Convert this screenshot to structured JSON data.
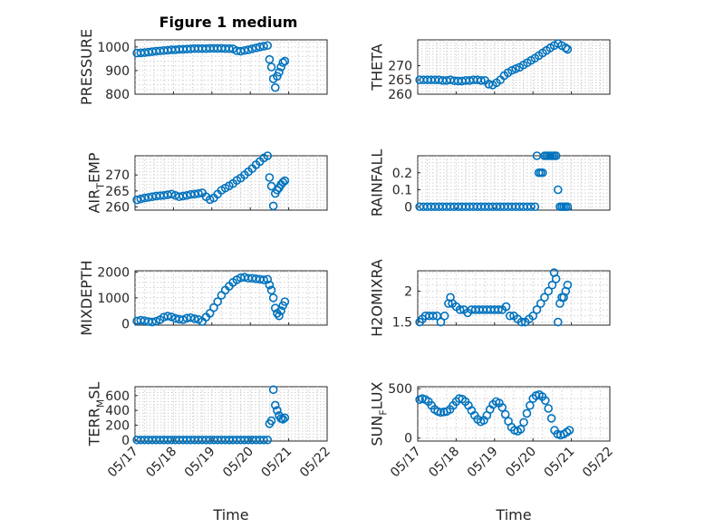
{
  "figure_title": "Figure 1 medium",
  "marker_color": "#0072BD",
  "chart_data": [
    {
      "type": "scatter",
      "ylabel": "PRESSURE",
      "ylim": [
        800,
        1030
      ],
      "yticks": [
        800,
        900,
        1000
      ],
      "yticklabels": [
        "800",
        "900",
        "1000"
      ],
      "grid": true,
      "x": [
        0.05,
        0.15,
        0.25,
        0.35,
        0.45,
        0.55,
        0.65,
        0.75,
        0.85,
        0.95,
        1.05,
        1.15,
        1.25,
        1.35,
        1.45,
        1.55,
        1.65,
        1.75,
        1.85,
        1.95,
        2.05,
        2.15,
        2.25,
        2.35,
        2.45,
        2.55,
        2.65,
        2.75,
        2.85,
        2.95,
        3.05,
        3.15,
        3.25,
        3.35,
        3.45,
        3.5,
        3.55,
        3.6,
        3.65,
        3.7,
        3.75,
        3.8,
        3.85,
        3.9
      ],
      "y": [
        974,
        975,
        976,
        978,
        980,
        982,
        983,
        985,
        986,
        988,
        988,
        990,
        990,
        991,
        992,
        993,
        993,
        993,
        993,
        994,
        994,
        994,
        994,
        993,
        993,
        992,
        984,
        982,
        985,
        988,
        992,
        996,
        1000,
        1003,
        1006,
        947,
        915,
        865,
        828,
        876,
        893,
        915,
        934,
        940
      ]
    },
    {
      "type": "scatter",
      "ylabel": "THETA",
      "ylim": [
        260,
        279
      ],
      "yticks": [
        260,
        265,
        270
      ],
      "yticklabels": [
        "260",
        "265",
        "270"
      ],
      "grid": true,
      "x": [
        0.05,
        0.15,
        0.25,
        0.35,
        0.45,
        0.55,
        0.65,
        0.75,
        0.85,
        0.95,
        1.05,
        1.15,
        1.25,
        1.35,
        1.45,
        1.55,
        1.65,
        1.75,
        1.85,
        1.95,
        2.05,
        2.15,
        2.25,
        2.35,
        2.45,
        2.55,
        2.65,
        2.75,
        2.85,
        2.95,
        3.05,
        3.15,
        3.25,
        3.35,
        3.45,
        3.55,
        3.65,
        3.75,
        3.85,
        3.9
      ],
      "y": [
        265,
        265,
        265,
        265,
        265,
        265,
        264.8,
        264.8,
        265,
        264.7,
        264.6,
        264.6,
        264.8,
        264.8,
        265,
        265,
        264.8,
        264.8,
        263.5,
        263.2,
        264,
        265,
        266.5,
        267.5,
        268.3,
        268.9,
        269.4,
        270.2,
        271,
        271.8,
        272.6,
        273.5,
        274.4,
        275.3,
        276.2,
        277,
        277.7,
        277,
        276.2,
        275.7
      ]
    },
    {
      "type": "scatter",
      "ylabel": "AIR_TEMP",
      "ylim": [
        259,
        276
      ],
      "yticks": [
        260,
        265,
        270
      ],
      "yticklabels": [
        "260",
        "265",
        "270"
      ],
      "grid": true,
      "x": [
        0.05,
        0.15,
        0.25,
        0.35,
        0.45,
        0.55,
        0.65,
        0.75,
        0.85,
        0.95,
        1.05,
        1.15,
        1.25,
        1.35,
        1.45,
        1.55,
        1.65,
        1.75,
        1.85,
        1.95,
        2.05,
        2.15,
        2.25,
        2.35,
        2.45,
        2.55,
        2.65,
        2.75,
        2.85,
        2.95,
        3.05,
        3.15,
        3.25,
        3.35,
        3.45,
        3.5,
        3.55,
        3.6,
        3.65,
        3.7,
        3.75,
        3.8,
        3.85,
        3.9
      ],
      "y": [
        262.2,
        262.5,
        262.8,
        263,
        263.2,
        263.4,
        263.5,
        263.6,
        263.8,
        264,
        263.6,
        263.2,
        263.4,
        263.6,
        263.9,
        264,
        264.2,
        264.4,
        263.2,
        262.3,
        262.8,
        264,
        265.2,
        265.9,
        266.6,
        267.3,
        268.3,
        269,
        270,
        271,
        272,
        273.2,
        274.2,
        275.3,
        276,
        269.2,
        266.5,
        260.3,
        264.2,
        265.3,
        266,
        267,
        267.7,
        268.2
      ]
    },
    {
      "type": "scatter",
      "ylabel": "RAINFALL",
      "ylim": [
        -0.02,
        0.3
      ],
      "yticks": [
        0,
        0.1,
        0.2
      ],
      "yticklabels": [
        "0",
        "0.1",
        "0.2"
      ],
      "grid": true,
      "x": [
        0.05,
        0.15,
        0.25,
        0.35,
        0.45,
        0.55,
        0.65,
        0.75,
        0.85,
        0.95,
        1.05,
        1.15,
        1.25,
        1.35,
        1.45,
        1.55,
        1.65,
        1.75,
        1.85,
        1.95,
        2.05,
        2.15,
        2.25,
        2.35,
        2.45,
        2.55,
        2.65,
        2.75,
        2.85,
        2.95,
        3.05,
        3.1,
        3.15,
        3.2,
        3.25,
        3.3,
        3.35,
        3.4,
        3.45,
        3.5,
        3.55,
        3.6,
        3.65,
        3.7,
        3.75,
        3.8,
        3.85,
        3.9
      ],
      "y": [
        0,
        0,
        0,
        0,
        0,
        0,
        0,
        0,
        0,
        0,
        0,
        0,
        0,
        0,
        0,
        0,
        0,
        0,
        0,
        0,
        0,
        0,
        0,
        0,
        0,
        0,
        0,
        0,
        0,
        0,
        0,
        0.3,
        0.2,
        0.2,
        0.2,
        0.3,
        0.3,
        0.3,
        0.3,
        0.3,
        0.3,
        0.3,
        0.1,
        0,
        0,
        0,
        0,
        0
      ]
    },
    {
      "type": "scatter",
      "ylabel": "MIXDEPTH",
      "ylim": [
        -60,
        2050
      ],
      "yticks": [
        0,
        1000,
        2000
      ],
      "yticklabels": [
        "0",
        "1000",
        "2000"
      ],
      "grid": true,
      "x": [
        0.05,
        0.15,
        0.25,
        0.35,
        0.45,
        0.55,
        0.65,
        0.75,
        0.85,
        0.95,
        1.05,
        1.15,
        1.25,
        1.35,
        1.45,
        1.55,
        1.65,
        1.75,
        1.85,
        1.95,
        2.05,
        2.15,
        2.25,
        2.35,
        2.45,
        2.55,
        2.65,
        2.75,
        2.85,
        2.95,
        3.05,
        3.15,
        3.25,
        3.35,
        3.45,
        3.5,
        3.55,
        3.6,
        3.65,
        3.7,
        3.75,
        3.8,
        3.85,
        3.9
      ],
      "y": [
        100,
        130,
        110,
        80,
        60,
        90,
        150,
        250,
        290,
        260,
        200,
        170,
        150,
        210,
        230,
        190,
        160,
        80,
        250,
        400,
        620,
        850,
        1100,
        1300,
        1450,
        1600,
        1700,
        1780,
        1800,
        1760,
        1760,
        1740,
        1720,
        1700,
        1720,
        1500,
        1300,
        1000,
        600,
        400,
        300,
        500,
        700,
        850
      ]
    },
    {
      "type": "scatter",
      "ylabel": "H2OMIXRA",
      "ylim": [
        1.45,
        2.33
      ],
      "yticks": [
        1.5,
        2
      ],
      "yticklabels": [
        "1.5",
        "2"
      ],
      "grid": true,
      "x": [
        0.05,
        0.12,
        0.2,
        0.3,
        0.4,
        0.5,
        0.6,
        0.7,
        0.8,
        0.85,
        0.9,
        1.0,
        1.1,
        1.2,
        1.3,
        1.4,
        1.5,
        1.6,
        1.7,
        1.8,
        1.9,
        2.0,
        2.1,
        2.2,
        2.3,
        2.4,
        2.5,
        2.6,
        2.7,
        2.8,
        2.9,
        3.0,
        3.1,
        3.2,
        3.3,
        3.4,
        3.5,
        3.55,
        3.6,
        3.65,
        3.7,
        3.75,
        3.8,
        3.85,
        3.9
      ],
      "y": [
        1.5,
        1.55,
        1.6,
        1.6,
        1.6,
        1.6,
        1.5,
        1.6,
        1.8,
        1.9,
        1.8,
        1.75,
        1.7,
        1.7,
        1.65,
        1.7,
        1.7,
        1.7,
        1.7,
        1.7,
        1.7,
        1.7,
        1.7,
        1.7,
        1.75,
        1.6,
        1.6,
        1.55,
        1.5,
        1.5,
        1.55,
        1.6,
        1.7,
        1.8,
        1.9,
        2.0,
        2.1,
        2.3,
        2.2,
        1.5,
        1.8,
        1.9,
        1.9,
        2.0,
        2.1
      ]
    },
    {
      "type": "scatter",
      "ylabel": "TERR_MSL",
      "ylim": [
        -15,
        720
      ],
      "yticks": [
        0,
        200,
        400,
        600
      ],
      "yticklabels": [
        "0",
        "200",
        "400",
        "600"
      ],
      "grid": true,
      "x": [
        0.05,
        0.15,
        0.25,
        0.35,
        0.45,
        0.55,
        0.65,
        0.75,
        0.85,
        0.95,
        1.05,
        1.15,
        1.25,
        1.35,
        1.45,
        1.55,
        1.65,
        1.75,
        1.85,
        1.95,
        2.05,
        2.15,
        2.25,
        2.35,
        2.45,
        2.55,
        2.65,
        2.75,
        2.85,
        2.95,
        3.05,
        3.15,
        3.25,
        3.35,
        3.45,
        3.5,
        3.55,
        3.6,
        3.65,
        3.7,
        3.75,
        3.8,
        3.85,
        3.9
      ],
      "y": [
        0,
        0,
        0,
        0,
        0,
        0,
        0,
        0,
        0,
        0,
        0,
        0,
        0,
        0,
        0,
        0,
        0,
        0,
        0,
        0,
        0,
        0,
        0,
        0,
        0,
        0,
        0,
        0,
        0,
        0,
        0,
        0,
        0,
        0,
        0,
        220,
        260,
        680,
        470,
        400,
        330,
        290,
        280,
        300
      ]
    },
    {
      "type": "scatter",
      "ylabel": "SUN_FLUX",
      "ylim": [
        -30,
        520
      ],
      "yticks": [
        0,
        500
      ],
      "yticklabels": [
        "0",
        "500"
      ],
      "grid": true,
      "x": [
        0.05,
        0.12,
        0.2,
        0.28,
        0.36,
        0.44,
        0.52,
        0.6,
        0.68,
        0.76,
        0.84,
        0.92,
        1.0,
        1.08,
        1.16,
        1.24,
        1.32,
        1.4,
        1.48,
        1.56,
        1.64,
        1.72,
        1.8,
        1.88,
        1.96,
        2.04,
        2.12,
        2.2,
        2.28,
        2.36,
        2.44,
        2.52,
        2.6,
        2.68,
        2.76,
        2.84,
        2.92,
        3.0,
        3.08,
        3.16,
        3.24,
        3.32,
        3.4,
        3.48,
        3.56,
        3.64,
        3.72,
        3.8,
        3.88,
        3.95
      ],
      "y": [
        390,
        400,
        390,
        370,
        330,
        290,
        270,
        260,
        265,
        270,
        290,
        330,
        370,
        400,
        395,
        370,
        330,
        280,
        230,
        190,
        165,
        180,
        230,
        290,
        340,
        370,
        355,
        310,
        240,
        170,
        110,
        80,
        70,
        90,
        160,
        250,
        330,
        400,
        430,
        440,
        420,
        380,
        300,
        200,
        80,
        40,
        30,
        40,
        60,
        80
      ]
    }
  ],
  "xaxis": {
    "xlim": [
      0,
      5
    ],
    "xticks": [
      0,
      1,
      2,
      3,
      4,
      5
    ],
    "xticklabels": [
      "05/17",
      "05/18",
      "05/19",
      "05/20",
      "05/21",
      "05/22"
    ],
    "xlabel": "Time"
  }
}
